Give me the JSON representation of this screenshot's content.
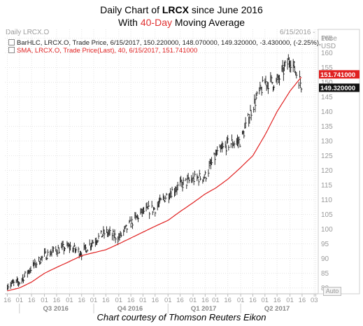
{
  "title": {
    "pre": "Daily Chart of ",
    "ticker": "LRCX",
    "post": " since June 2016",
    "line2_pre": "With ",
    "line2_accent": "40-Day",
    "line2_post": " Moving Average"
  },
  "panel": {
    "name": "Daily LRCX.O",
    "date_range": "6/15/2016 - 7/5/2017",
    "price_unit": "Price\nUSD",
    "auto_label": "Auto"
  },
  "legend": {
    "bar_series": "BarHLC, LRCX.O, Trade Price, 6/15/2017, 150.220000, 148.070000, 149.320000, -3.430000, (-2.25%),",
    "sma_series": "SMA, LRCX.O, Trade Price(Last), 40, 6/15/2017, 151.741000"
  },
  "price_tags": {
    "sma": "151.741000",
    "last": "149.320000"
  },
  "colors": {
    "bars": "#1a1a1a",
    "sma": "#e02020",
    "accent": "#e03030",
    "grid": "#e4e4e4"
  },
  "footer": "Chart courtesy of Thomson Reuters Eikon",
  "chart_data": {
    "type": "line",
    "x_unit": "date",
    "x": [
      "2016-06-16",
      "2016-07-01",
      "2016-07-16",
      "2016-08-01",
      "2016-08-16",
      "2016-09-01",
      "2016-09-16",
      "2016-10-01",
      "2016-10-16",
      "2016-11-01",
      "2016-11-16",
      "2016-12-01",
      "2016-12-16",
      "2017-01-01",
      "2017-01-16",
      "2017-02-01",
      "2017-02-16",
      "2017-03-01",
      "2017-03-16",
      "2017-04-01",
      "2017-04-16",
      "2017-05-01",
      "2017-05-16",
      "2017-06-01",
      "2017-06-15"
    ],
    "series": [
      {
        "name": "BarHLC, LRCX.O, Trade Price",
        "style": "hlc-bars",
        "values": [
          81,
          82,
          87,
          91,
          93,
          94,
          92,
          96,
          99,
          97,
          102,
          106,
          107,
          112,
          115,
          117,
          118,
          125,
          129,
          130,
          142,
          150,
          150,
          158,
          149.32
        ]
      },
      {
        "name": "SMA, LRCX.O, Trade Price(Last), 40",
        "style": "line",
        "values": [
          79,
          80,
          82,
          85,
          87,
          89,
          91,
          92,
          93,
          95,
          97,
          99,
          101,
          103,
          106,
          109,
          112,
          114,
          117,
          121,
          125,
          132,
          140,
          147,
          151.741
        ]
      }
    ],
    "ylim": [
      78,
      168
    ],
    "y_ticks": [
      80,
      85,
      90,
      95,
      100,
      105,
      110,
      115,
      120,
      125,
      130,
      135,
      140,
      145,
      150,
      155,
      160,
      165
    ],
    "x_ticks_top": [
      "16",
      "01",
      "16",
      "01",
      "16",
      "01",
      "16",
      "01",
      "16",
      "01",
      "16",
      "01",
      "16",
      "01",
      "16",
      "01",
      "16",
      "01",
      "16",
      "01",
      "16",
      "01",
      "16",
      "01",
      "16",
      "03"
    ],
    "x_ticks_quarters": [
      "Q3 2016",
      "Q4 2016",
      "Q1 2017",
      "Q2 2017"
    ],
    "grid": true,
    "legend_position": "top-left"
  }
}
